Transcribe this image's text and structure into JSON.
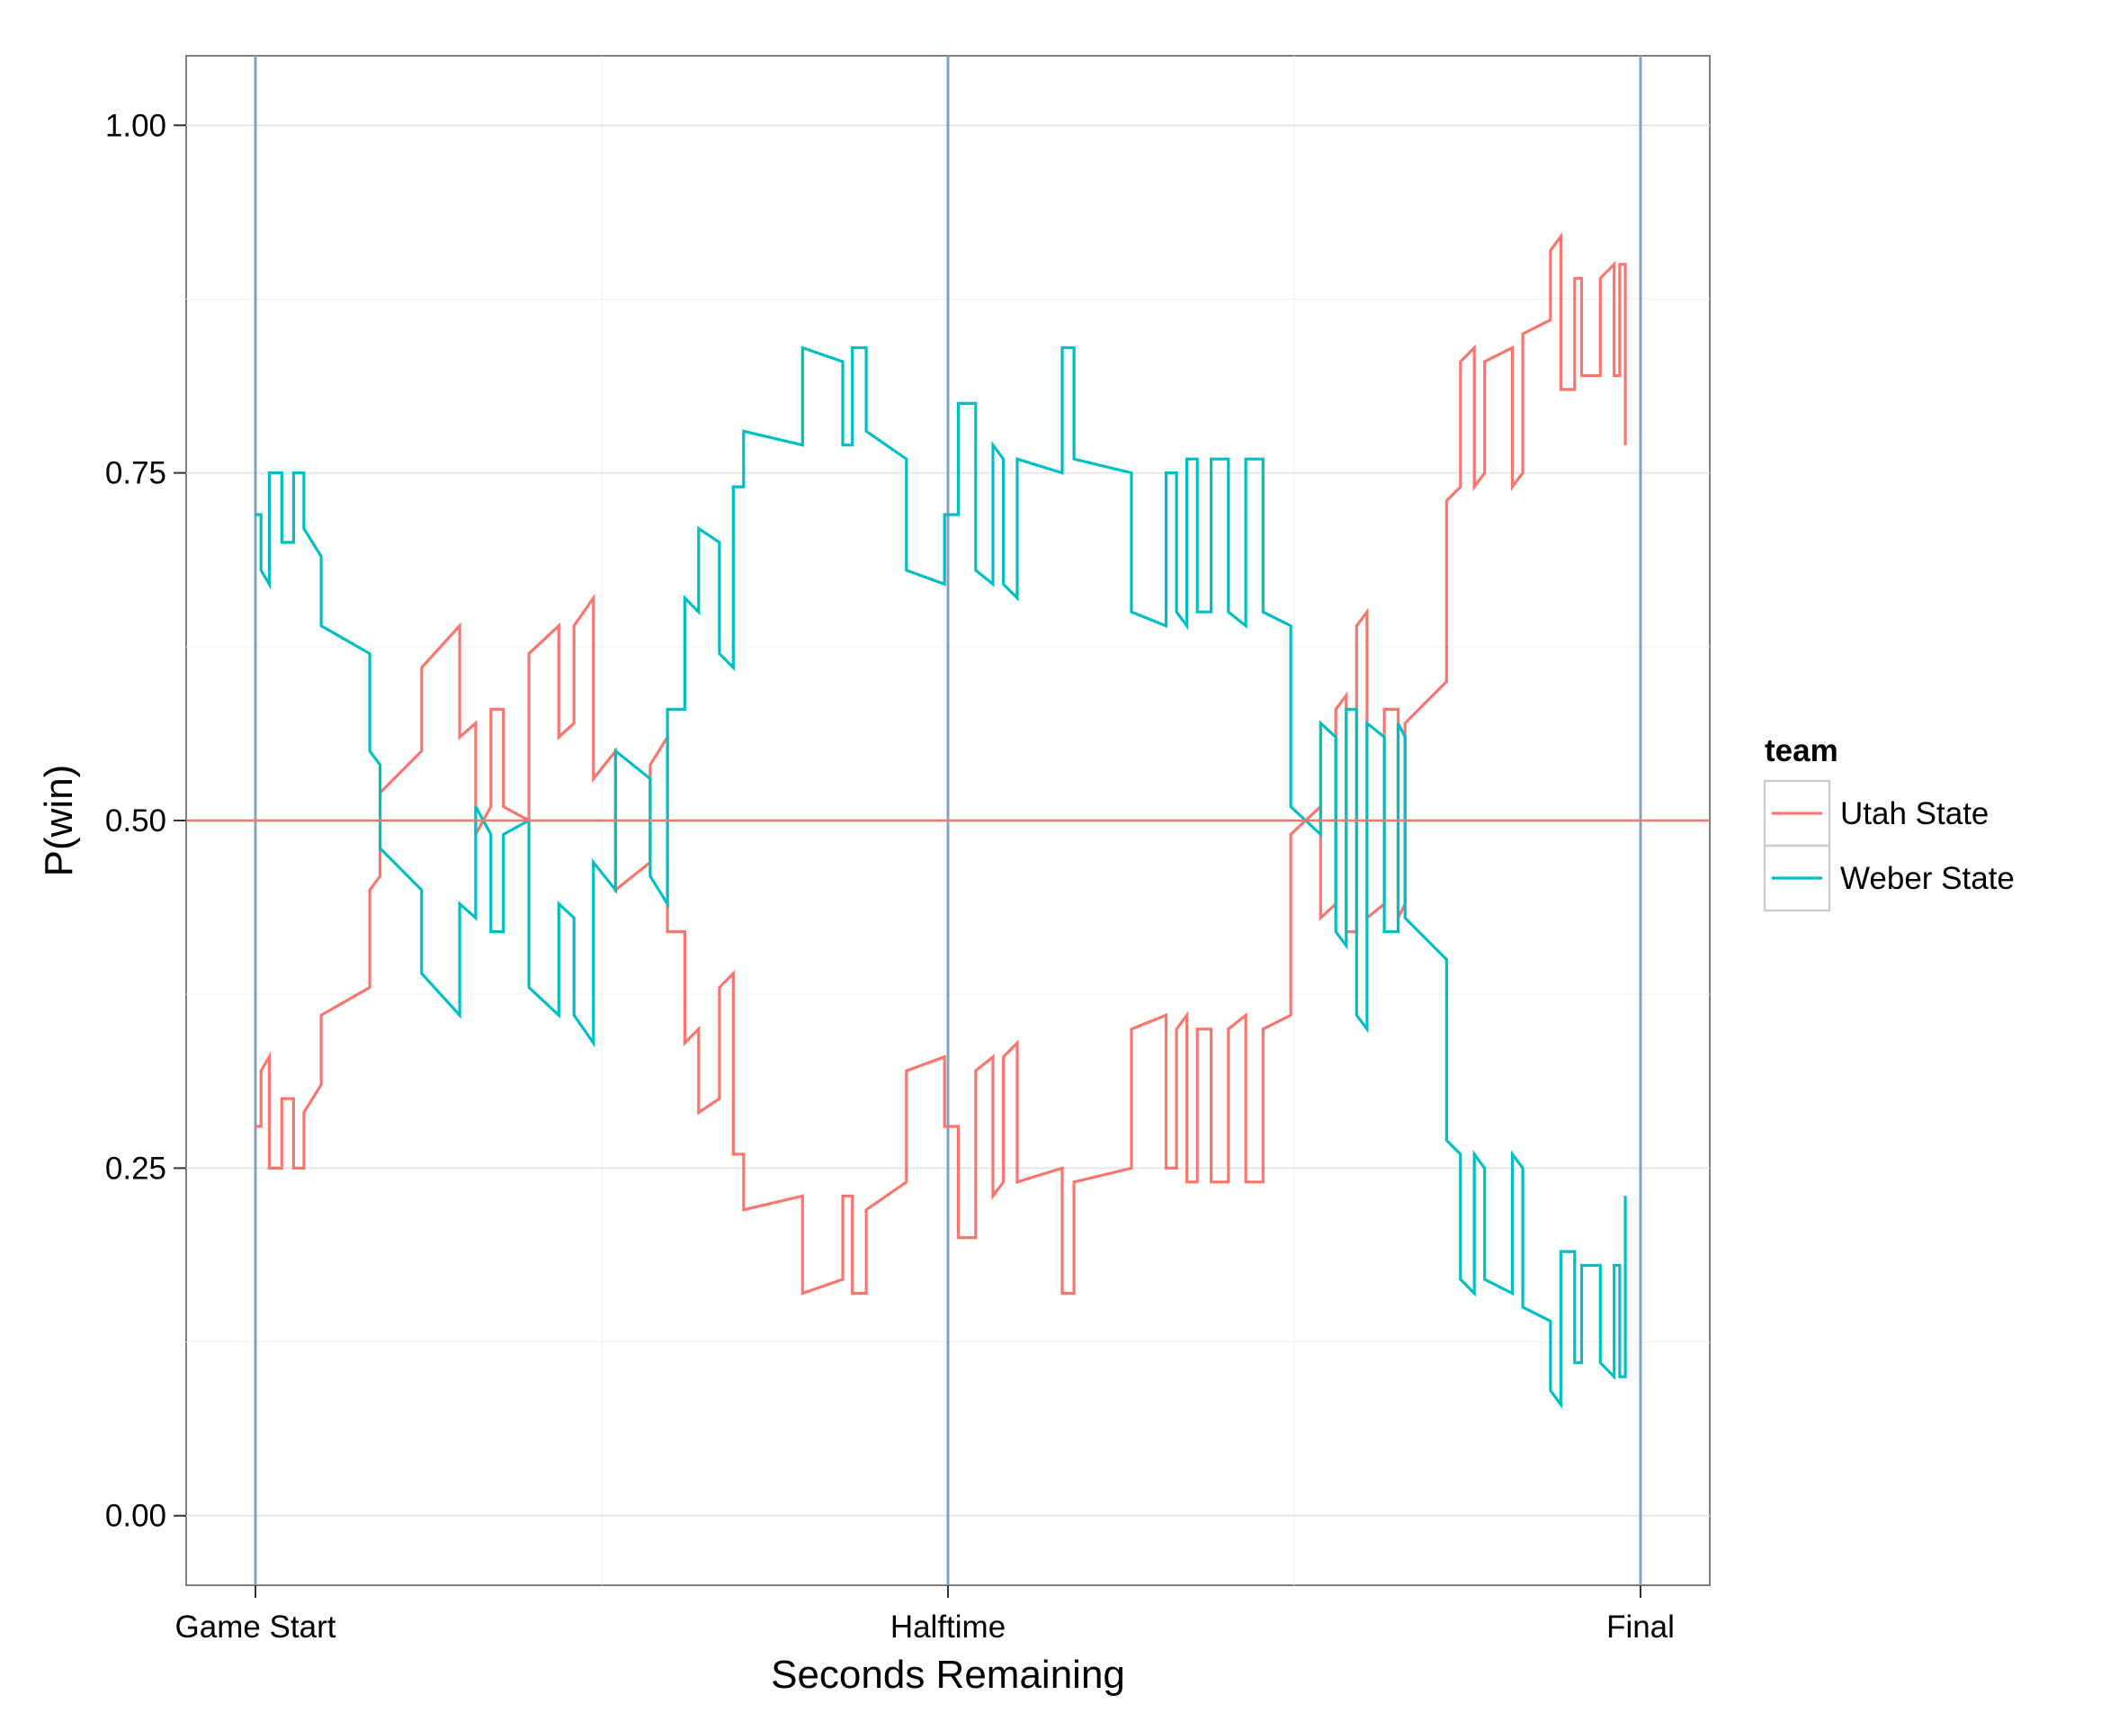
{
  "chart_data": {
    "type": "line",
    "title": "",
    "xlabel": "Seconds Remaining",
    "ylabel": "P(win)",
    "xlim": [
      -0.1,
      2.1
    ],
    "ylim": [
      -0.05,
      1.05
    ],
    "x_ticks": [
      {
        "value": 0,
        "label": "Game Start"
      },
      {
        "value": 1,
        "label": "Halftime"
      },
      {
        "value": 2,
        "label": "Final"
      }
    ],
    "y_ticks": [
      {
        "value": 0.0,
        "label": "0.00"
      },
      {
        "value": 0.25,
        "label": "0.25"
      },
      {
        "value": 0.5,
        "label": "0.50"
      },
      {
        "value": 0.75,
        "label": "0.75"
      },
      {
        "value": 1.0,
        "label": "1.00"
      }
    ],
    "grid": true,
    "vlines": [
      0,
      1,
      2
    ],
    "hline": 0.5,
    "legend": {
      "title": "team",
      "placement": "right"
    },
    "series": [
      {
        "name": "Utah State",
        "color": "#F8766D",
        "points": [
          [
            0.0,
            0.28
          ],
          [
            0.008,
            0.28
          ],
          [
            0.008,
            0.32
          ],
          [
            0.02,
            0.33
          ],
          [
            0.02,
            0.25
          ],
          [
            0.038,
            0.25
          ],
          [
            0.038,
            0.3
          ],
          [
            0.055,
            0.3
          ],
          [
            0.055,
            0.25
          ],
          [
            0.07,
            0.25
          ],
          [
            0.07,
            0.29
          ],
          [
            0.095,
            0.31
          ],
          [
            0.095,
            0.36
          ],
          [
            0.165,
            0.38
          ],
          [
            0.165,
            0.45
          ],
          [
            0.18,
            0.46
          ],
          [
            0.18,
            0.52
          ],
          [
            0.24,
            0.55
          ],
          [
            0.24,
            0.61
          ],
          [
            0.295,
            0.64
          ],
          [
            0.295,
            0.56
          ],
          [
            0.318,
            0.57
          ],
          [
            0.318,
            0.49
          ],
          [
            0.34,
            0.51
          ],
          [
            0.34,
            0.58
          ],
          [
            0.358,
            0.58
          ],
          [
            0.358,
            0.51
          ],
          [
            0.395,
            0.5
          ],
          [
            0.395,
            0.62
          ],
          [
            0.438,
            0.64
          ],
          [
            0.438,
            0.56
          ],
          [
            0.46,
            0.57
          ],
          [
            0.46,
            0.64
          ],
          [
            0.488,
            0.66
          ],
          [
            0.488,
            0.53
          ],
          [
            0.52,
            0.55
          ],
          [
            0.52,
            0.45
          ],
          [
            0.57,
            0.47
          ],
          [
            0.57,
            0.54
          ],
          [
            0.595,
            0.56
          ],
          [
            0.595,
            0.42
          ],
          [
            0.62,
            0.42
          ],
          [
            0.62,
            0.34
          ],
          [
            0.64,
            0.35
          ],
          [
            0.64,
            0.29
          ],
          [
            0.67,
            0.3
          ],
          [
            0.67,
            0.38
          ],
          [
            0.69,
            0.39
          ],
          [
            0.69,
            0.26
          ],
          [
            0.705,
            0.26
          ],
          [
            0.705,
            0.22
          ],
          [
            0.79,
            0.23
          ],
          [
            0.79,
            0.16
          ],
          [
            0.848,
            0.17
          ],
          [
            0.848,
            0.23
          ],
          [
            0.862,
            0.23
          ],
          [
            0.862,
            0.16
          ],
          [
            0.882,
            0.16
          ],
          [
            0.882,
            0.22
          ],
          [
            0.94,
            0.24
          ],
          [
            0.94,
            0.32
          ],
          [
            0.995,
            0.33
          ],
          [
            0.995,
            0.28
          ],
          [
            1.015,
            0.28
          ],
          [
            1.015,
            0.2
          ],
          [
            1.04,
            0.2
          ],
          [
            1.04,
            0.32
          ],
          [
            1.065,
            0.33
          ],
          [
            1.065,
            0.23
          ],
          [
            1.08,
            0.24
          ],
          [
            1.08,
            0.33
          ],
          [
            1.1,
            0.34
          ],
          [
            1.1,
            0.24
          ],
          [
            1.165,
            0.25
          ],
          [
            1.165,
            0.16
          ],
          [
            1.182,
            0.16
          ],
          [
            1.182,
            0.24
          ],
          [
            1.265,
            0.25
          ],
          [
            1.265,
            0.35
          ],
          [
            1.315,
            0.36
          ],
          [
            1.315,
            0.25
          ],
          [
            1.33,
            0.25
          ],
          [
            1.33,
            0.35
          ],
          [
            1.345,
            0.36
          ],
          [
            1.345,
            0.24
          ],
          [
            1.36,
            0.24
          ],
          [
            1.36,
            0.35
          ],
          [
            1.38,
            0.35
          ],
          [
            1.38,
            0.24
          ],
          [
            1.405,
            0.24
          ],
          [
            1.405,
            0.35
          ],
          [
            1.43,
            0.36
          ],
          [
            1.43,
            0.24
          ],
          [
            1.455,
            0.24
          ],
          [
            1.455,
            0.35
          ],
          [
            1.495,
            0.36
          ],
          [
            1.495,
            0.49
          ],
          [
            1.538,
            0.51
          ],
          [
            1.538,
            0.43
          ],
          [
            1.56,
            0.44
          ],
          [
            1.56,
            0.58
          ],
          [
            1.575,
            0.59
          ],
          [
            1.575,
            0.42
          ],
          [
            1.59,
            0.42
          ],
          [
            1.59,
            0.64
          ],
          [
            1.605,
            0.65
          ],
          [
            1.605,
            0.43
          ],
          [
            1.63,
            0.44
          ],
          [
            1.63,
            0.58
          ],
          [
            1.65,
            0.58
          ],
          [
            1.65,
            0.43
          ],
          [
            1.66,
            0.44
          ],
          [
            1.66,
            0.57
          ],
          [
            1.72,
            0.6
          ],
          [
            1.72,
            0.73
          ],
          [
            1.74,
            0.74
          ],
          [
            1.74,
            0.83
          ],
          [
            1.76,
            0.84
          ],
          [
            1.76,
            0.74
          ],
          [
            1.775,
            0.75
          ],
          [
            1.775,
            0.83
          ],
          [
            1.815,
            0.84
          ],
          [
            1.815,
            0.74
          ],
          [
            1.83,
            0.75
          ],
          [
            1.83,
            0.85
          ],
          [
            1.87,
            0.86
          ],
          [
            1.87,
            0.91
          ],
          [
            1.885,
            0.92
          ],
          [
            1.885,
            0.81
          ],
          [
            1.905,
            0.81
          ],
          [
            1.905,
            0.89
          ],
          [
            1.915,
            0.89
          ],
          [
            1.915,
            0.82
          ],
          [
            1.942,
            0.82
          ],
          [
            1.942,
            0.89
          ],
          [
            1.962,
            0.9
          ],
          [
            1.962,
            0.82
          ],
          [
            1.97,
            0.82
          ],
          [
            1.97,
            0.9
          ],
          [
            1.978,
            0.9
          ],
          [
            1.978,
            0.77
          ]
        ]
      },
      {
        "name": "Weber State",
        "color": "#00BFC4",
        "points": [
          [
            0.0,
            0.72
          ],
          [
            0.008,
            0.72
          ],
          [
            0.008,
            0.68
          ],
          [
            0.02,
            0.67
          ],
          [
            0.02,
            0.75
          ],
          [
            0.038,
            0.75
          ],
          [
            0.038,
            0.7
          ],
          [
            0.055,
            0.7
          ],
          [
            0.055,
            0.75
          ],
          [
            0.07,
            0.75
          ],
          [
            0.07,
            0.71
          ],
          [
            0.095,
            0.69
          ],
          [
            0.095,
            0.64
          ],
          [
            0.165,
            0.62
          ],
          [
            0.165,
            0.55
          ],
          [
            0.18,
            0.54
          ],
          [
            0.18,
            0.48
          ],
          [
            0.24,
            0.45
          ],
          [
            0.24,
            0.39
          ],
          [
            0.295,
            0.36
          ],
          [
            0.295,
            0.44
          ],
          [
            0.318,
            0.43
          ],
          [
            0.318,
            0.51
          ],
          [
            0.34,
            0.49
          ],
          [
            0.34,
            0.42
          ],
          [
            0.358,
            0.42
          ],
          [
            0.358,
            0.49
          ],
          [
            0.395,
            0.5
          ],
          [
            0.395,
            0.38
          ],
          [
            0.438,
            0.36
          ],
          [
            0.438,
            0.44
          ],
          [
            0.46,
            0.43
          ],
          [
            0.46,
            0.36
          ],
          [
            0.488,
            0.34
          ],
          [
            0.488,
            0.47
          ],
          [
            0.52,
            0.45
          ],
          [
            0.52,
            0.55
          ],
          [
            0.57,
            0.53
          ],
          [
            0.57,
            0.46
          ],
          [
            0.595,
            0.44
          ],
          [
            0.595,
            0.58
          ],
          [
            0.62,
            0.58
          ],
          [
            0.62,
            0.66
          ],
          [
            0.64,
            0.65
          ],
          [
            0.64,
            0.71
          ],
          [
            0.67,
            0.7
          ],
          [
            0.67,
            0.62
          ],
          [
            0.69,
            0.61
          ],
          [
            0.69,
            0.74
          ],
          [
            0.705,
            0.74
          ],
          [
            0.705,
            0.78
          ],
          [
            0.79,
            0.77
          ],
          [
            0.79,
            0.84
          ],
          [
            0.848,
            0.83
          ],
          [
            0.848,
            0.77
          ],
          [
            0.862,
            0.77
          ],
          [
            0.862,
            0.84
          ],
          [
            0.882,
            0.84
          ],
          [
            0.882,
            0.78
          ],
          [
            0.94,
            0.76
          ],
          [
            0.94,
            0.68
          ],
          [
            0.995,
            0.67
          ],
          [
            0.995,
            0.72
          ],
          [
            1.015,
            0.72
          ],
          [
            1.015,
            0.8
          ],
          [
            1.04,
            0.8
          ],
          [
            1.04,
            0.68
          ],
          [
            1.065,
            0.67
          ],
          [
            1.065,
            0.77
          ],
          [
            1.08,
            0.76
          ],
          [
            1.08,
            0.67
          ],
          [
            1.1,
            0.66
          ],
          [
            1.1,
            0.76
          ],
          [
            1.165,
            0.75
          ],
          [
            1.165,
            0.84
          ],
          [
            1.182,
            0.84
          ],
          [
            1.182,
            0.76
          ],
          [
            1.265,
            0.75
          ],
          [
            1.265,
            0.65
          ],
          [
            1.315,
            0.64
          ],
          [
            1.315,
            0.75
          ],
          [
            1.33,
            0.75
          ],
          [
            1.33,
            0.65
          ],
          [
            1.345,
            0.64
          ],
          [
            1.345,
            0.76
          ],
          [
            1.36,
            0.76
          ],
          [
            1.36,
            0.65
          ],
          [
            1.38,
            0.65
          ],
          [
            1.38,
            0.76
          ],
          [
            1.405,
            0.76
          ],
          [
            1.405,
            0.65
          ],
          [
            1.43,
            0.64
          ],
          [
            1.43,
            0.76
          ],
          [
            1.455,
            0.76
          ],
          [
            1.455,
            0.65
          ],
          [
            1.495,
            0.64
          ],
          [
            1.495,
            0.51
          ],
          [
            1.538,
            0.49
          ],
          [
            1.538,
            0.57
          ],
          [
            1.56,
            0.56
          ],
          [
            1.56,
            0.42
          ],
          [
            1.575,
            0.41
          ],
          [
            1.575,
            0.58
          ],
          [
            1.59,
            0.58
          ],
          [
            1.59,
            0.36
          ],
          [
            1.605,
            0.35
          ],
          [
            1.605,
            0.57
          ],
          [
            1.63,
            0.56
          ],
          [
            1.63,
            0.42
          ],
          [
            1.65,
            0.42
          ],
          [
            1.65,
            0.57
          ],
          [
            1.66,
            0.56
          ],
          [
            1.66,
            0.43
          ],
          [
            1.72,
            0.4
          ],
          [
            1.72,
            0.27
          ],
          [
            1.74,
            0.26
          ],
          [
            1.74,
            0.17
          ],
          [
            1.76,
            0.16
          ],
          [
            1.76,
            0.26
          ],
          [
            1.775,
            0.25
          ],
          [
            1.775,
            0.17
          ],
          [
            1.815,
            0.16
          ],
          [
            1.815,
            0.26
          ],
          [
            1.83,
            0.25
          ],
          [
            1.83,
            0.15
          ],
          [
            1.87,
            0.14
          ],
          [
            1.87,
            0.09
          ],
          [
            1.885,
            0.08
          ],
          [
            1.885,
            0.19
          ],
          [
            1.905,
            0.19
          ],
          [
            1.905,
            0.11
          ],
          [
            1.915,
            0.11
          ],
          [
            1.915,
            0.18
          ],
          [
            1.942,
            0.18
          ],
          [
            1.942,
            0.11
          ],
          [
            1.962,
            0.1
          ],
          [
            1.962,
            0.18
          ],
          [
            1.97,
            0.18
          ],
          [
            1.97,
            0.1
          ],
          [
            1.978,
            0.1
          ],
          [
            1.978,
            0.23
          ]
        ]
      }
    ]
  }
}
